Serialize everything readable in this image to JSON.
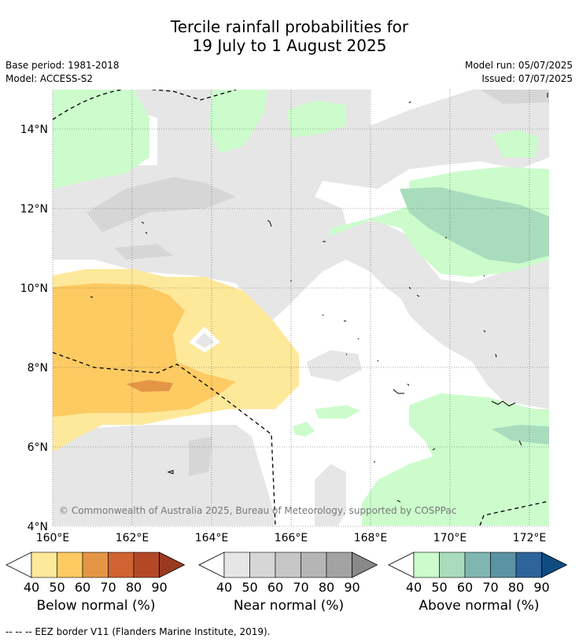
{
  "header": {
    "title_line1": "Tercile rainfall probabilities for",
    "title_line2": "19 July to 1 August 2025",
    "base_period": "Base period: 1981-2018",
    "model": "Model: ACCESS-S2",
    "model_run": "Model run: 05/07/2025",
    "issued": "Issued: 07/07/2025"
  },
  "map": {
    "lon_labels": [
      "160°E",
      "162°E",
      "164°E",
      "166°E",
      "168°E",
      "170°E",
      "172°E"
    ],
    "lat_labels": [
      "14°N",
      "12°N",
      "10°N",
      "8°N",
      "6°N",
      "4°N"
    ],
    "copyright": "© Commonwealth of Australia 2025, Bureau of Meteorology, supported by COSPPac"
  },
  "colorbars": [
    {
      "label": "Below normal (%)",
      "ticks": [
        "40",
        "50",
        "60",
        "70",
        "80",
        "90"
      ],
      "colors": [
        "#fee89a",
        "#fdcb62",
        "#e49646",
        "#cf6331",
        "#b34827",
        "#993a21"
      ]
    },
    {
      "label": "Near normal (%)",
      "ticks": [
        "40",
        "50",
        "60",
        "70",
        "80",
        "90"
      ],
      "colors": [
        "#e6e6e6",
        "#d6d6d6",
        "#c6c6c6",
        "#b5b5b5",
        "#a2a2a2",
        "#888888"
      ]
    },
    {
      "label": "Above normal (%)",
      "ticks": [
        "40",
        "50",
        "60",
        "70",
        "80",
        "90"
      ],
      "colors": [
        "#ccfccc",
        "#a9dcbd",
        "#7fb6b2",
        "#5b93a4",
        "#2f649a",
        "#0e4b80"
      ]
    }
  ],
  "footer": {
    "legend": "-- -- -- EEZ border V11 (Flanders Marine Institute, 2019)."
  }
}
